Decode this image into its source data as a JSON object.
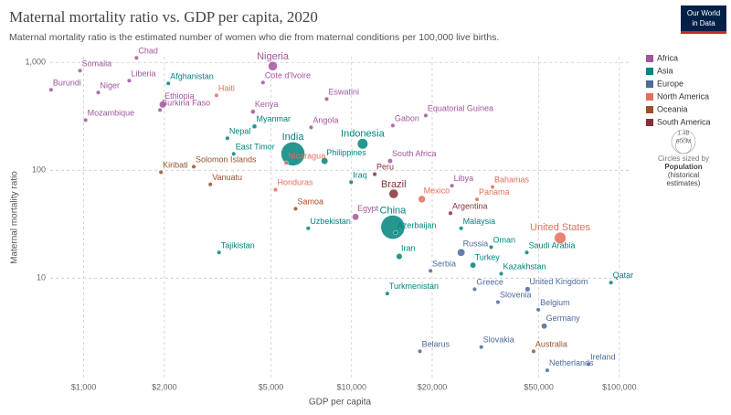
{
  "chart_data": {
    "type": "scatter",
    "title": "Maternal mortality ratio vs. GDP per capita, 2020",
    "subtitle": "Maternal mortality ratio is the estimated number of women who die from maternal conditions per 100,000 live births.",
    "logo": [
      "Our World",
      "in Data"
    ],
    "x_label": "GDP per capita",
    "y_label": "Maternal mortality ratio",
    "x_log": true,
    "y_log": true,
    "grid": true,
    "xlim": [
      750,
      110000
    ],
    "ylim": [
      1.2,
      1130
    ],
    "xticks": [
      {
        "value": 1000,
        "label": "$1,000"
      },
      {
        "value": 2000,
        "label": "$2,000"
      },
      {
        "value": 5000,
        "label": "$5,000"
      },
      {
        "value": 10000,
        "label": "$10,000"
      },
      {
        "value": 20000,
        "label": "$20,000"
      },
      {
        "value": 50000,
        "label": "$50,000"
      },
      {
        "value": 100000,
        "label": "$100,000"
      }
    ],
    "yticks": [
      {
        "value": 1000,
        "label": "1,000"
      },
      100,
      10
    ],
    "size_legend": {
      "title": [
        "Circles sized by",
        "Population",
        "(historical",
        "estimates)"
      ],
      "entries": [
        {
          "value": 1400,
          "label": "1.4B"
        },
        {
          "value": 600,
          "label": "600M"
        }
      ]
    },
    "series": [
      {
        "name": "Africa",
        "color": "#a2559c",
        "labels": [
          "Nigeria",
          "Somalia",
          "Chad",
          "Liberia",
          "Burundi",
          "Niger",
          "Ethiopia",
          "Burkina Faso",
          "Mozambique",
          "Kenya",
          "Cote d'Ivoire",
          "Eswatini",
          "Gabon",
          "Equatorial Guinea",
          "Angola",
          "South Africa",
          "Libya",
          "Egypt"
        ],
        "x": [
          5080,
          969,
          1574,
          1479,
          755,
          1133,
          1973,
          1927,
          1016,
          4285,
          4670,
          8075,
          14260,
          18920,
          7060,
          13930,
          23700,
          10350
        ],
        "values": [
          925,
          839,
          1102,
          677,
          557,
          526,
          407,
          362,
          292,
          349,
          651,
          458,
          260,
          322,
          250,
          122,
          72,
          37
        ],
        "sizes": [
          210,
          17,
          17,
          5,
          12,
          25,
          120,
          22,
          32,
          54,
          27,
          1,
          2,
          1.5,
          34,
          60,
          7,
          109
        ]
      },
      {
        "name": "Asia",
        "color": "#00847e",
        "labels": [
          "India",
          "China",
          "Afghanistan",
          "Nepal",
          "Myanmar",
          "East Timor",
          "Indonesia",
          "Philippines",
          "Iraq",
          "Uzbekistan",
          "Tajikistan",
          "Azerbaijan",
          "Malaysia",
          "Iran",
          "Oman",
          "Saudi Arabia",
          "Turkey",
          "Kazakhstan",
          "Turkmenistan",
          "Qatar"
        ],
        "x": [
          6040,
          14260,
          2070,
          3440,
          4340,
          3630,
          11000,
          7930,
          9960,
          6890,
          3200,
          14600,
          25650,
          15070,
          33200,
          45100,
          28400,
          36200,
          13600,
          93000
        ],
        "values": [
          142,
          29.7,
          638,
          198,
          255,
          142,
          176,
          122,
          77.6,
          29,
          17.3,
          26.4,
          29,
          15.9,
          19.4,
          17.3,
          13.2,
          11,
          7.2,
          9.1
        ],
        "sizes": [
          1400,
          1420,
          40,
          30,
          54,
          1.3,
          275,
          113,
          43,
          34,
          10,
          10,
          33,
          88,
          4.5,
          36,
          85,
          19,
          6,
          2.7
        ]
      },
      {
        "name": "Europe",
        "color": "#4c6a9c",
        "labels": [
          "Russia",
          "Serbia",
          "United Kingdom",
          "Greece",
          "Slovenia",
          "Belgium",
          "Germany",
          "Belarus",
          "Slovakia",
          "Ireland",
          "Netherlands"
        ],
        "x": [
          25650,
          19700,
          45400,
          28800,
          35200,
          49800,
          52400,
          18000,
          30500,
          76700,
          53800
        ],
        "values": [
          17.3,
          11.7,
          7.9,
          7.9,
          6,
          5.1,
          3.6,
          2.1,
          2.3,
          1.6,
          1.4
        ],
        "sizes": [
          144,
          7,
          67,
          10,
          2,
          12,
          83,
          9,
          5,
          5,
          17
        ]
      },
      {
        "name": "North America",
        "color": "#e56e5a",
        "labels": [
          "United States",
          "Haiti",
          "Nicaragua",
          "Honduras",
          "Mexico",
          "Bahamas",
          "Panama"
        ],
        "x": [
          60100,
          3130,
          5700,
          5200,
          18300,
          33600,
          29400
        ],
        "values": [
          23.6,
          495,
          117,
          66,
          54,
          70,
          53.8
        ],
        "sizes": [
          332,
          11,
          7,
          10,
          127,
          0.4,
          4.3
        ]
      },
      {
        "name": "Oceania",
        "color": "#9a5129",
        "labels": [
          "Solomon Islands",
          "Kiribati",
          "Vanuatu",
          "Samoa",
          "Australia"
        ],
        "x": [
          2575,
          1943,
          2970,
          6180,
          47800
        ],
        "values": [
          108,
          96,
          74,
          44,
          2.1
        ],
        "sizes": [
          0.7,
          0.1,
          0.3,
          0.2,
          26
        ]
      },
      {
        "name": "South America",
        "color": "#883039",
        "labels": [
          "Peru",
          "Brazil",
          "Argentina"
        ],
        "x": [
          12200,
          14360,
          23400
        ],
        "values": [
          92,
          60.5,
          40
        ],
        "sizes": [
          33,
          214,
          45
        ]
      }
    ]
  }
}
